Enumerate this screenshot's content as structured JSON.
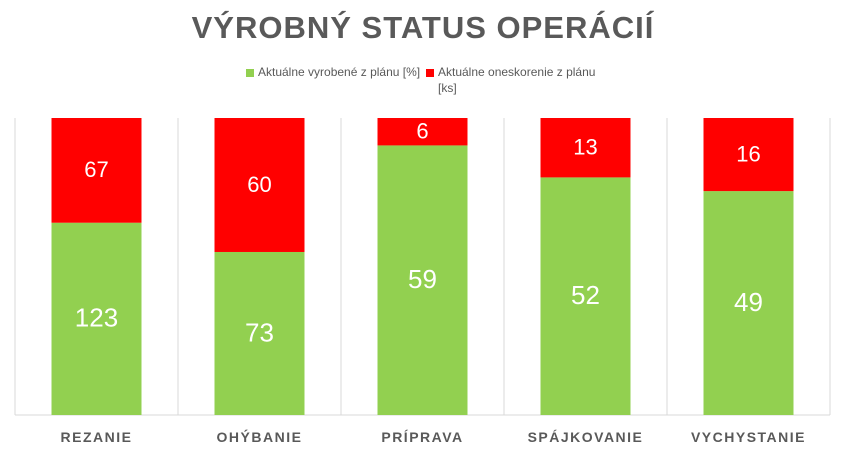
{
  "chart_data": {
    "type": "bar",
    "stacked": true,
    "title": "VÝROBNÝ STATUS OPERÁCIÍ",
    "categories": [
      "REZANIE",
      "OHÝBANIE",
      "PRÍPRAVA",
      "SPÁJKOVANIE",
      "VYCHYSTANIE"
    ],
    "series": [
      {
        "name": "Aktuálne vyrobené z plánu [%]",
        "color": "#92d050",
        "values": [
          123,
          73,
          59,
          52,
          49
        ]
      },
      {
        "name": "Aktuálne oneskorenie z plánu [ks]",
        "color": "#ff0000",
        "values": [
          67,
          60,
          6,
          13,
          16
        ]
      }
    ],
    "normalized_to_percent": true,
    "legend_position": "top",
    "grid": "vertical-only"
  }
}
